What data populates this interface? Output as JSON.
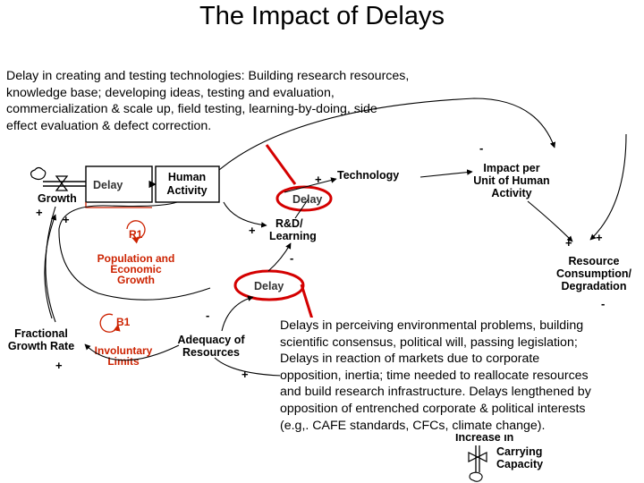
{
  "title": "The Impact of Delays",
  "intro_lines": [
    "Delay in creating and testing technologies: Building research resources,",
    "knowledge base; developing ideas, testing and evaluation,",
    "commercialization & scale up, field testing, learning-by-doing, side",
    "effect evaluation & defect correction."
  ],
  "callout_lines": [
    "Delays in perceiving environmental problems, building",
    "scientific consensus, political will, passing legislation;",
    "Delays in reaction of markets due to corporate",
    "opposition, inertia; time needed to reallocate resources",
    "and build research infrastructure.  Delays lengthened by",
    "opposition of entrenched corporate & political interests",
    "(e.g,. CAFE standards, CFCs, climate change)."
  ],
  "diagram": {
    "growth": "Growth",
    "delay_growth": "Delay",
    "human_activity": [
      "Human",
      "Activity"
    ],
    "technology": "Technology",
    "delay_tech": "Delay",
    "rd_learning": [
      "R&D/",
      "Learning"
    ],
    "delay_rd": "Delay",
    "impact": [
      "Impact per",
      "Unit of Human",
      "Activity"
    ],
    "resource": [
      "Resource",
      "Consumption/",
      "Degradation"
    ],
    "loop_r1": "R1",
    "r1_name": [
      "Population and",
      "Economic",
      "Growth"
    ],
    "loop_b1": "B1",
    "b1_name": [
      "Involuntary",
      "Limits"
    ],
    "fractional": [
      "Fractional",
      "Growth  Rate"
    ],
    "adequacy": [
      "Adequacy  of",
      "Resources"
    ],
    "carrying": [
      "Carrying",
      "Capacity"
    ],
    "carrying_partial": "Increase in",
    "signs": {
      "plus": "+",
      "minus": "-"
    }
  },
  "colors": {
    "highlight": "#d40000",
    "loop_label": "#cc2200",
    "arrow": "#000000"
  }
}
